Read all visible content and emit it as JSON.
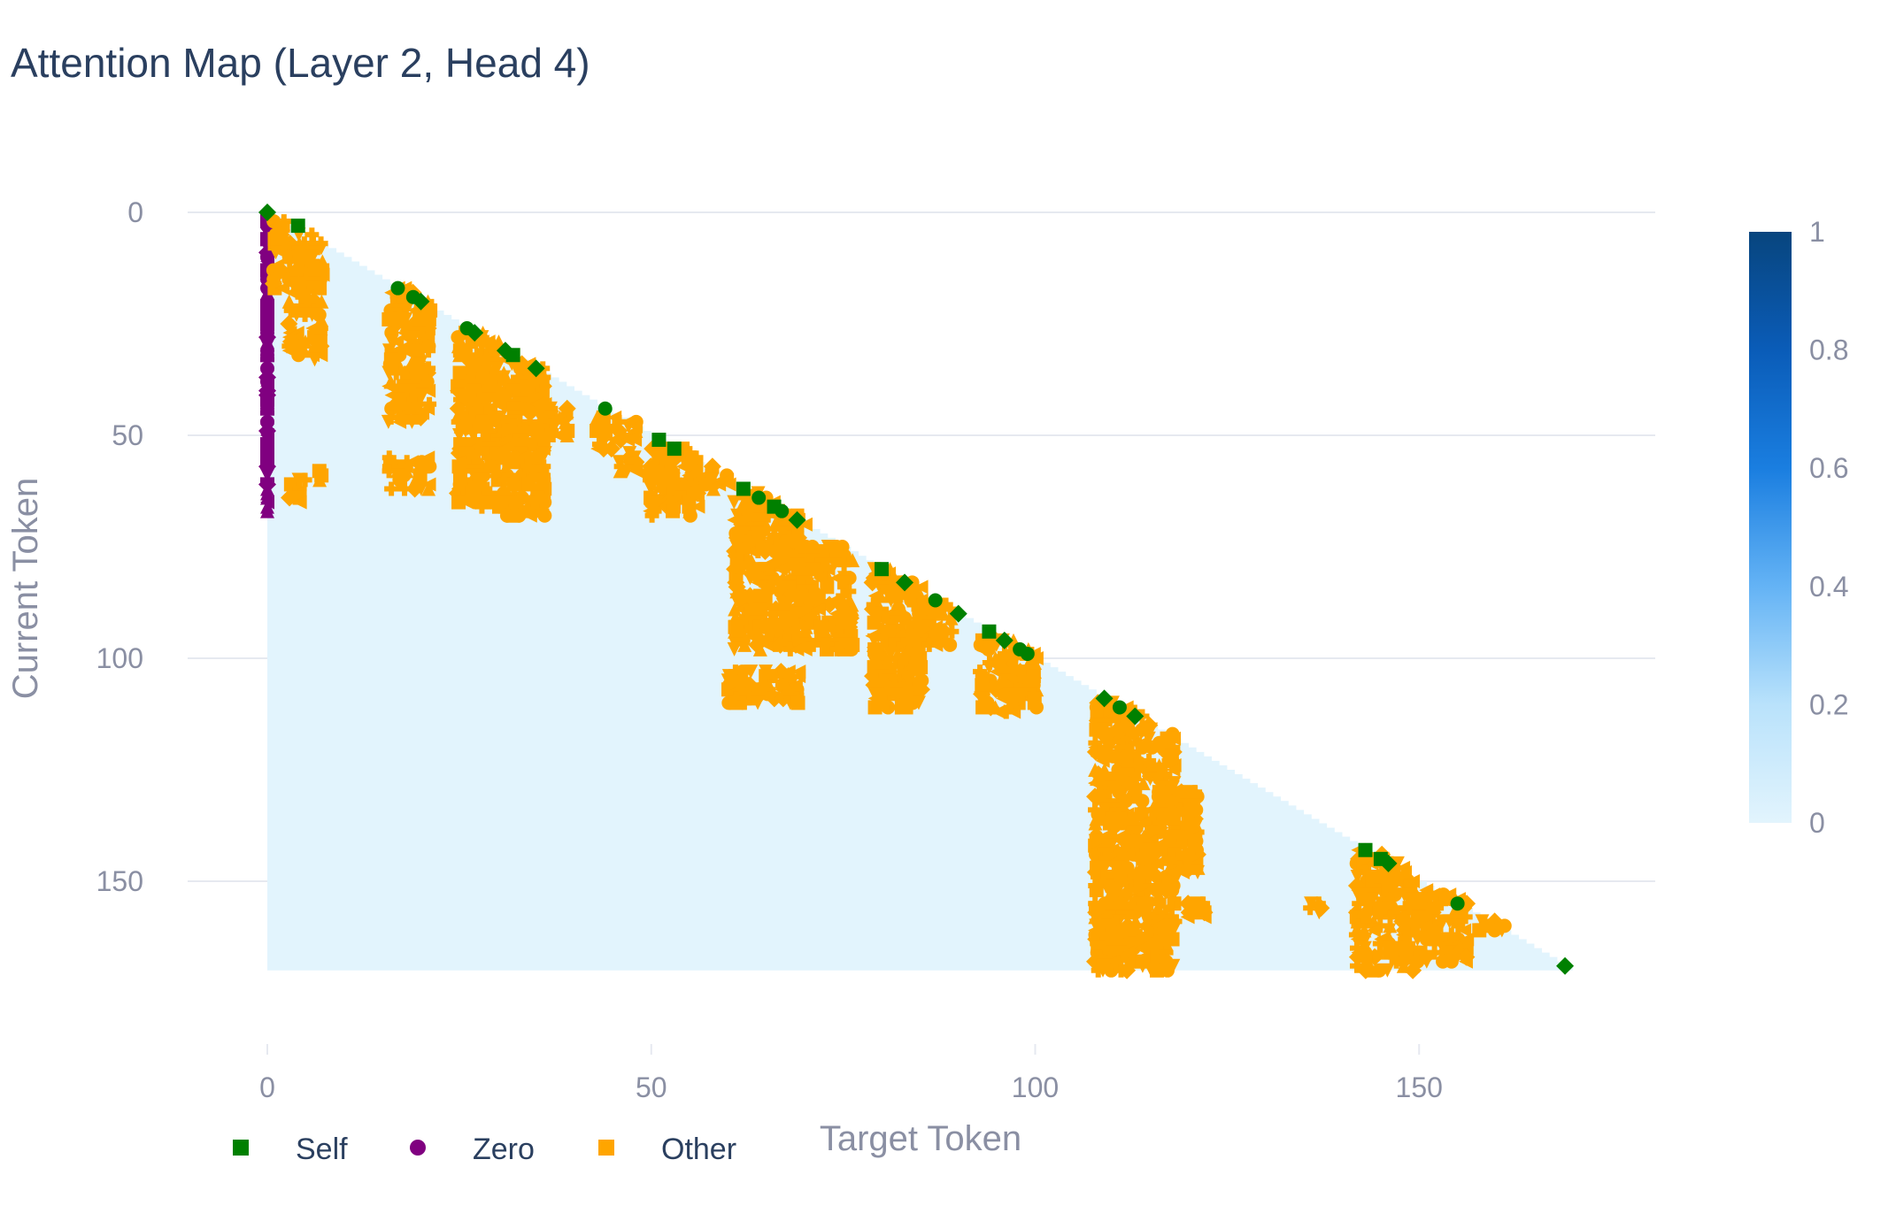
{
  "chart_data": {
    "type": "heatmap",
    "title": "Attention Map (Layer 2, Head 4)",
    "xlabel": "Target Token",
    "ylabel": "Current Token",
    "n_tokens": 170,
    "xlim": [
      0,
      170
    ],
    "ylim": [
      0,
      170
    ],
    "y_reversed": true,
    "x_ticks": [
      0,
      50,
      100,
      150
    ],
    "y_ticks": [
      0,
      50,
      100,
      150
    ],
    "grid": true,
    "heatmap": {
      "mask": "lower-triangular (causal)",
      "dominant_value": 0.05,
      "colorscale": [
        "#e2f4fd",
        "#b9e2fb",
        "#64b3f5",
        "#1a7ee0",
        "#0a5cb8",
        "#08457e"
      ],
      "colorbar": {
        "range": [
          0,
          1
        ],
        "ticks": [
          0,
          0.2,
          0.4,
          0.6,
          0.8,
          1
        ]
      }
    },
    "legend": {
      "placement": "bottom-left",
      "entries": [
        {
          "name": "Self",
          "color": "#008000"
        },
        {
          "name": "Zero",
          "color": "#800080"
        },
        {
          "name": "Other",
          "color": "#ffa500"
        }
      ]
    },
    "series": [
      {
        "name": "Zero",
        "color": "#800080",
        "marker": "mixed",
        "x": [
          0
        ],
        "y_ranges": [
          [
            0,
            67
          ]
        ]
      },
      {
        "name": "Other",
        "color": "#ffa500",
        "marker": "mixed",
        "blocks": [
          {
            "x": [
              1,
              2
            ],
            "y": [
              1,
              17
            ]
          },
          {
            "x": [
              3,
              7
            ],
            "y": [
              5,
              33
            ]
          },
          {
            "x": [
              6,
              7
            ],
            "y": [
              57,
              60
            ]
          },
          {
            "x": [
              3,
              5
            ],
            "y": [
              60,
              65
            ]
          },
          {
            "x": [
              16,
              21
            ],
            "y": [
              17,
              47
            ]
          },
          {
            "x": [
              16,
              21
            ],
            "y": [
              55,
              62
            ]
          },
          {
            "x": [
              25,
              30
            ],
            "y": [
              26,
              66
            ]
          },
          {
            "x": [
              31,
              36
            ],
            "y": [
              32,
              68
            ]
          },
          {
            "x": [
              36,
              39
            ],
            "y": [
              44,
              50
            ]
          },
          {
            "x": [
              43,
              45
            ],
            "y": [
              46,
              53
            ]
          },
          {
            "x": [
              46,
              48
            ],
            "y": [
              47,
              58
            ]
          },
          {
            "x": [
              50,
              56
            ],
            "y": [
              53,
              68
            ]
          },
          {
            "x": [
              57,
              60
            ],
            "y": [
              57,
              62
            ]
          },
          {
            "x": [
              61,
              70
            ],
            "y": [
              63,
              98
            ]
          },
          {
            "x": [
              60,
              69
            ],
            "y": [
              103,
              110
            ]
          },
          {
            "x": [
              70,
              76
            ],
            "y": [
              75,
              98
            ]
          },
          {
            "x": [
              79,
              85
            ],
            "y": [
              80,
              111
            ]
          },
          {
            "x": [
              85,
              89
            ],
            "y": [
              88,
              97
            ]
          },
          {
            "x": [
              93,
              100
            ],
            "y": [
              96,
              112
            ]
          },
          {
            "x": [
              108,
              118
            ],
            "y": [
              110,
              170
            ]
          },
          {
            "x": [
              118,
              121
            ],
            "y": [
              130,
              148
            ]
          },
          {
            "x": [
              120,
              122
            ],
            "y": [
              155,
              158
            ]
          },
          {
            "x": [
              136,
              137
            ],
            "y": [
              155,
              157
            ]
          },
          {
            "x": [
              142,
              149
            ],
            "y": [
              143,
              170
            ]
          },
          {
            "x": [
              150,
              156
            ],
            "y": [
              152,
              168
            ]
          },
          {
            "x": [
              158,
              161
            ],
            "y": [
              159,
              162
            ]
          }
        ]
      },
      {
        "name": "Self",
        "color": "#008000",
        "marker": "mixed",
        "points": [
          [
            0,
            0
          ],
          [
            4,
            3
          ],
          [
            17,
            17
          ],
          [
            19,
            19
          ],
          [
            20,
            20
          ],
          [
            26,
            26
          ],
          [
            27,
            27
          ],
          [
            31,
            31
          ],
          [
            32,
            32
          ],
          [
            35,
            35
          ],
          [
            44,
            44
          ],
          [
            51,
            51
          ],
          [
            53,
            53
          ],
          [
            62,
            62
          ],
          [
            64,
            64
          ],
          [
            66,
            66
          ],
          [
            67,
            67
          ],
          [
            69,
            69
          ],
          [
            80,
            80
          ],
          [
            83,
            83
          ],
          [
            87,
            87
          ],
          [
            90,
            90
          ],
          [
            94,
            94
          ],
          [
            96,
            96
          ],
          [
            98,
            98
          ],
          [
            99,
            99
          ],
          [
            109,
            109
          ],
          [
            111,
            111
          ],
          [
            113,
            113
          ],
          [
            143,
            143
          ],
          [
            145,
            145
          ],
          [
            146,
            146
          ],
          [
            155,
            155
          ],
          [
            169,
            169
          ]
        ]
      }
    ]
  }
}
